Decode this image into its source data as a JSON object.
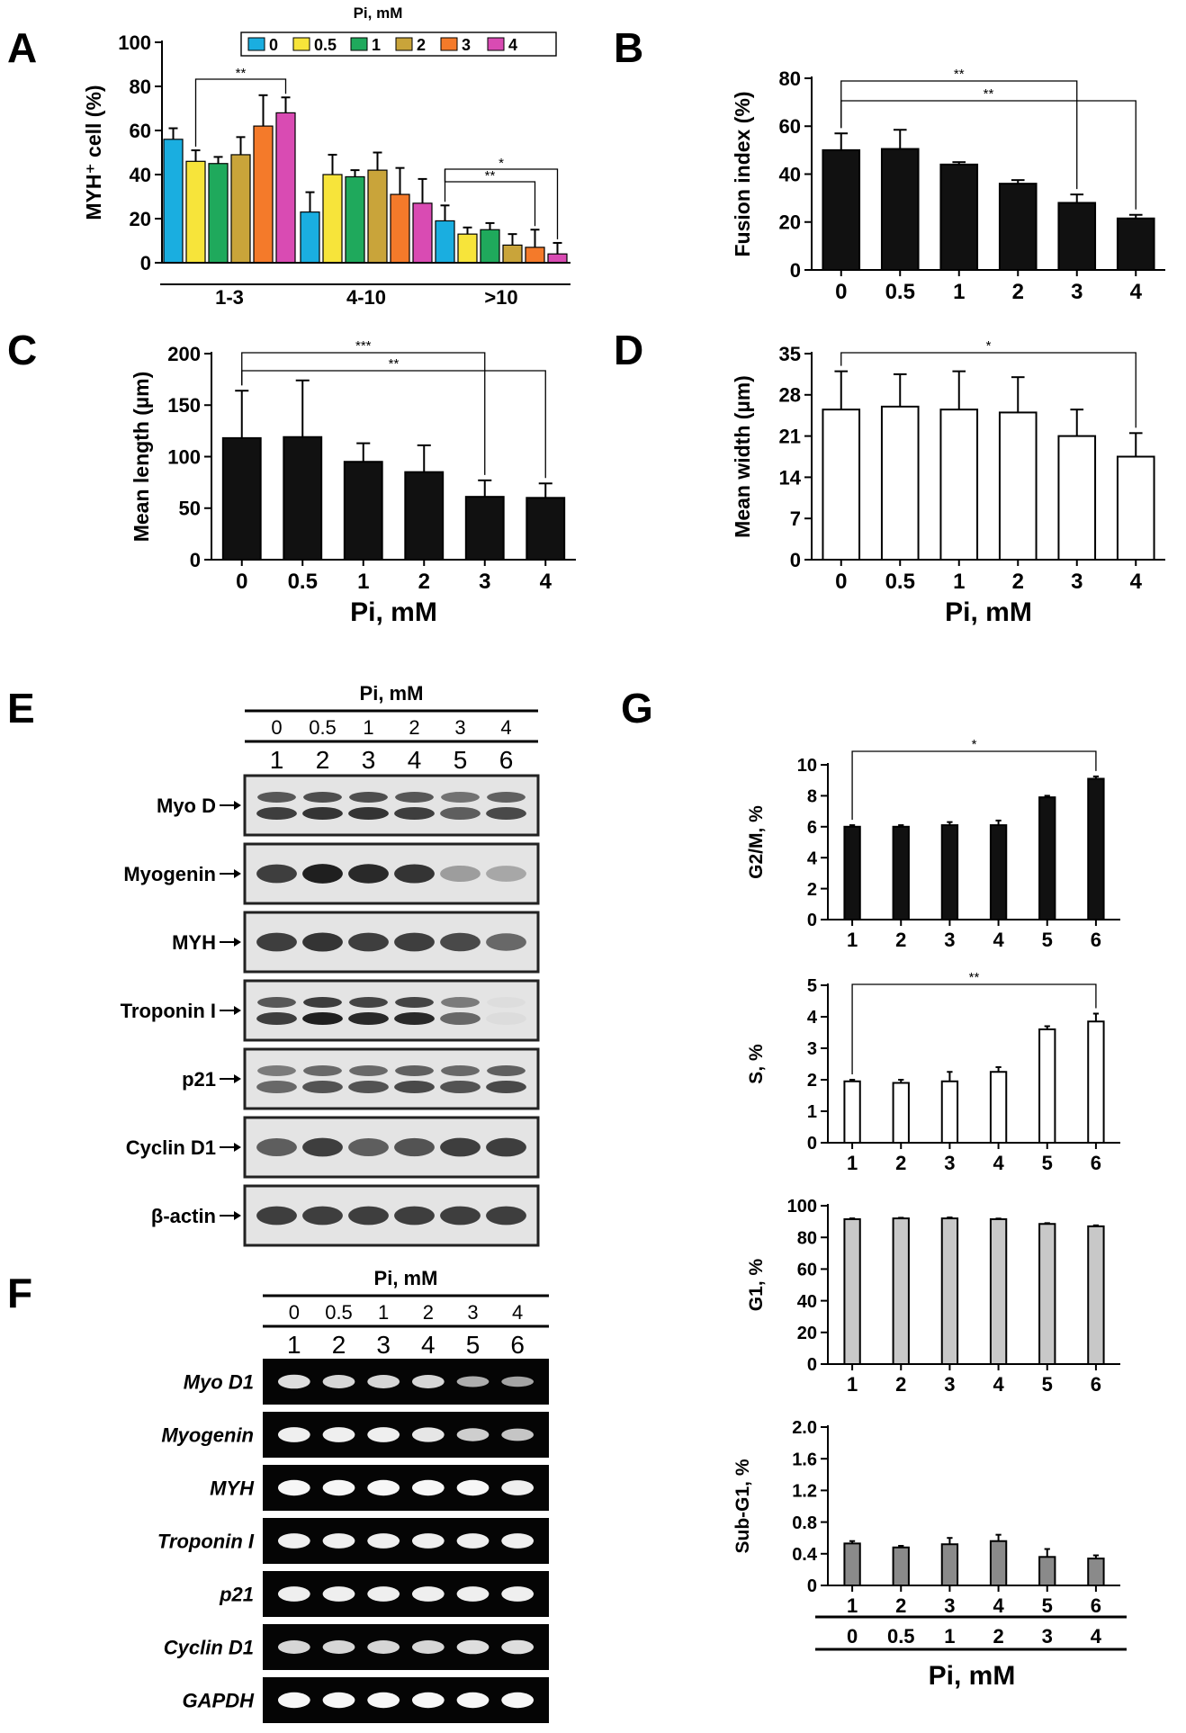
{
  "figure": {
    "panel_letters": [
      "A",
      "B",
      "C",
      "D",
      "E",
      "F",
      "G"
    ]
  },
  "chart_data": [
    {
      "panel": "A",
      "type": "bar",
      "ylabel": "MYH⁺ cell (%)",
      "ylim": [
        0,
        100
      ],
      "yticks": [
        0,
        20,
        40,
        60,
        80,
        100
      ],
      "legend_title": "Pi, mM",
      "legend_placement": "top",
      "groups": [
        "1-3",
        "4-10",
        ">10"
      ],
      "series": [
        {
          "name": "0",
          "color": "#1aaee0",
          "values": [
            56,
            23,
            19
          ],
          "errors": [
            5,
            9,
            7
          ]
        },
        {
          "name": "0.5",
          "color": "#f7e43a",
          "values": [
            46,
            40,
            13
          ],
          "errors": [
            5,
            9,
            3
          ]
        },
        {
          "name": "1",
          "color": "#1fa95c",
          "values": [
            45,
            39,
            15
          ],
          "errors": [
            3,
            3,
            3
          ]
        },
        {
          "name": "2",
          "color": "#c9a43a",
          "values": [
            49,
            42,
            8
          ],
          "errors": [
            8,
            8,
            5
          ]
        },
        {
          "name": "3",
          "color": "#f47a2a",
          "values": [
            62,
            31,
            7
          ],
          "errors": [
            14,
            12,
            8
          ]
        },
        {
          "name": "4",
          "color": "#d94bb3",
          "values": [
            68,
            27,
            4
          ],
          "errors": [
            7,
            11,
            5
          ]
        }
      ],
      "significance": [
        {
          "label": "**",
          "from": [
            0,
            1
          ],
          "to": [
            0,
            5
          ]
        },
        {
          "label": "*",
          "from": [
            2,
            0
          ],
          "to": [
            2,
            5
          ]
        },
        {
          "label": "**",
          "from": [
            2,
            0
          ],
          "to": [
            2,
            4
          ]
        }
      ]
    },
    {
      "panel": "B",
      "type": "bar",
      "ylabel": "Fusion index (%)",
      "ylim": [
        0,
        80
      ],
      "yticks": [
        0,
        20,
        40,
        60,
        80
      ],
      "categories": [
        "0",
        "0.5",
        "1",
        "2",
        "3",
        "4"
      ],
      "values": [
        50,
        50.5,
        44,
        36,
        28,
        21.5
      ],
      "errors": [
        7,
        8,
        1,
        1.5,
        3.5,
        1.5
      ],
      "bar_color": "#111111",
      "significance": [
        {
          "label": "**",
          "from": 0,
          "to": 4
        },
        {
          "label": "**",
          "from": 0,
          "to": 5
        }
      ]
    },
    {
      "panel": "C",
      "type": "bar",
      "xlabel": "Pi, mM",
      "ylabel": "Mean length (µm)",
      "ylim": [
        0,
        200
      ],
      "yticks": [
        0,
        50,
        100,
        150,
        200
      ],
      "categories": [
        "0",
        "0.5",
        "1",
        "2",
        "3",
        "4"
      ],
      "values": [
        118,
        119,
        95,
        85,
        61,
        60
      ],
      "errors": [
        46,
        55,
        18,
        26,
        16,
        14
      ],
      "bar_color": "#111111",
      "significance": [
        {
          "label": "***",
          "from": 0,
          "to": 4
        },
        {
          "label": "**",
          "from": 0,
          "to": 5
        }
      ]
    },
    {
      "panel": "D",
      "type": "bar",
      "xlabel": "Pi, mM",
      "ylabel": "Mean width (µm)",
      "ylim": [
        0,
        35
      ],
      "yticks": [
        0,
        7,
        14,
        21,
        28,
        35
      ],
      "categories": [
        "0",
        "0.5",
        "1",
        "2",
        "3",
        "4"
      ],
      "values": [
        25.5,
        26,
        25.5,
        25,
        21,
        17.5
      ],
      "errors": [
        6.5,
        5.5,
        6.5,
        6,
        4.5,
        4
      ],
      "bar_color": "#ffffff",
      "significance": [
        {
          "label": "*",
          "from": 0,
          "to": 5
        }
      ]
    },
    {
      "panel": "G",
      "type": "bar",
      "ylabel": "G2/M, %",
      "ylim": [
        0,
        10
      ],
      "yticks": [
        0,
        2,
        4,
        6,
        8,
        10
      ],
      "categories": [
        "1",
        "2",
        "3",
        "4",
        "5",
        "6"
      ],
      "values": [
        6.0,
        6.0,
        6.1,
        6.1,
        7.9,
        9.1
      ],
      "errors": [
        0.1,
        0.1,
        0.2,
        0.3,
        0.1,
        0.15
      ],
      "bar_color": "#111111",
      "significance": [
        {
          "label": "*",
          "from": 0,
          "to": 5
        }
      ]
    },
    {
      "panel": "G",
      "type": "bar",
      "ylabel": "S, %",
      "ylim": [
        0,
        5
      ],
      "yticks": [
        0,
        1,
        2,
        3,
        4,
        5
      ],
      "categories": [
        "1",
        "2",
        "3",
        "4",
        "5",
        "6"
      ],
      "values": [
        1.95,
        1.9,
        1.95,
        2.25,
        3.6,
        3.85
      ],
      "errors": [
        0.05,
        0.1,
        0.3,
        0.15,
        0.1,
        0.25
      ],
      "bar_color": "#ffffff",
      "significance": [
        {
          "label": "**",
          "from": 0,
          "to": 5
        }
      ]
    },
    {
      "panel": "G",
      "type": "bar",
      "ylabel": "G1, %",
      "ylim": [
        0,
        100
      ],
      "yticks": [
        0,
        20,
        40,
        60,
        80,
        100
      ],
      "categories": [
        "1",
        "2",
        "3",
        "4",
        "5",
        "6"
      ],
      "values": [
        91.5,
        92,
        92,
        91.5,
        88.5,
        87
      ],
      "errors": [
        0.5,
        0.4,
        0.6,
        0.4,
        0.5,
        0.6
      ],
      "bar_color": "#c8c8c8",
      "significance": []
    },
    {
      "panel": "G",
      "type": "bar",
      "ylabel": "Sub-G1, %",
      "ylim": [
        0,
        2.0
      ],
      "yticks": [
        "0",
        "0.4",
        "0.8",
        "1.2",
        "1.6",
        "2.0"
      ],
      "categories": [
        "1",
        "2",
        "3",
        "4",
        "5",
        "6"
      ],
      "values": [
        0.53,
        0.48,
        0.52,
        0.56,
        0.36,
        0.34
      ],
      "errors": [
        0.03,
        0.02,
        0.08,
        0.08,
        0.1,
        0.04
      ],
      "bar_color": "#8a8a8a",
      "significance": [],
      "footer_pi": [
        "0",
        "0.5",
        "1",
        "2",
        "3",
        "4"
      ],
      "xlabel": "Pi, mM"
    }
  ],
  "blots": {
    "E": {
      "header": "Pi, mM",
      "concentrations": [
        "0",
        "0.5",
        "1",
        "2",
        "3",
        "4"
      ],
      "lanes": [
        "1",
        "2",
        "3",
        "4",
        "5",
        "6"
      ],
      "rows": [
        {
          "label": "Myo D",
          "intensity": [
            0.8,
            0.85,
            0.85,
            0.8,
            0.65,
            0.75
          ],
          "double": true
        },
        {
          "label": "Myogenin",
          "intensity": [
            0.8,
            0.95,
            0.9,
            0.85,
            0.35,
            0.3
          ],
          "double": false
        },
        {
          "label": "MYH",
          "intensity": [
            0.8,
            0.85,
            0.8,
            0.8,
            0.75,
            0.6
          ],
          "double": false
        },
        {
          "label": "Troponin I",
          "intensity": [
            0.8,
            0.95,
            0.9,
            0.9,
            0.6,
            0.05
          ],
          "double": true
        },
        {
          "label": "p21",
          "intensity": [
            0.6,
            0.7,
            0.7,
            0.75,
            0.7,
            0.75
          ],
          "double": true
        },
        {
          "label": "Cyclin D1",
          "intensity": [
            0.65,
            0.8,
            0.65,
            0.7,
            0.8,
            0.8
          ],
          "double": false
        },
        {
          "label": "β-actin",
          "intensity": [
            0.8,
            0.8,
            0.8,
            0.8,
            0.8,
            0.8
          ],
          "double": false
        }
      ]
    },
    "F": {
      "header": "Pi, mM",
      "concentrations": [
        "0",
        "0.5",
        "1",
        "2",
        "3",
        "4"
      ],
      "lanes": [
        "1",
        "2",
        "3",
        "4",
        "5",
        "6"
      ],
      "rows": [
        {
          "label": "Myo D1",
          "intensity": [
            0.8,
            0.75,
            0.75,
            0.75,
            0.5,
            0.45
          ]
        },
        {
          "label": "Myogenin",
          "intensity": [
            0.9,
            0.9,
            0.9,
            0.85,
            0.7,
            0.65
          ]
        },
        {
          "label": "MYH",
          "intensity": [
            0.95,
            0.95,
            0.95,
            0.95,
            0.95,
            0.9
          ]
        },
        {
          "label": "Troponin I",
          "intensity": [
            0.9,
            0.9,
            0.9,
            0.9,
            0.9,
            0.9
          ]
        },
        {
          "label": "p21",
          "intensity": [
            0.9,
            0.9,
            0.9,
            0.9,
            0.9,
            0.9
          ]
        },
        {
          "label": "Cyclin D1",
          "intensity": [
            0.75,
            0.75,
            0.75,
            0.75,
            0.8,
            0.8
          ]
        },
        {
          "label": "GAPDH",
          "intensity": [
            0.95,
            0.95,
            0.95,
            0.95,
            0.95,
            0.95
          ]
        }
      ]
    }
  }
}
